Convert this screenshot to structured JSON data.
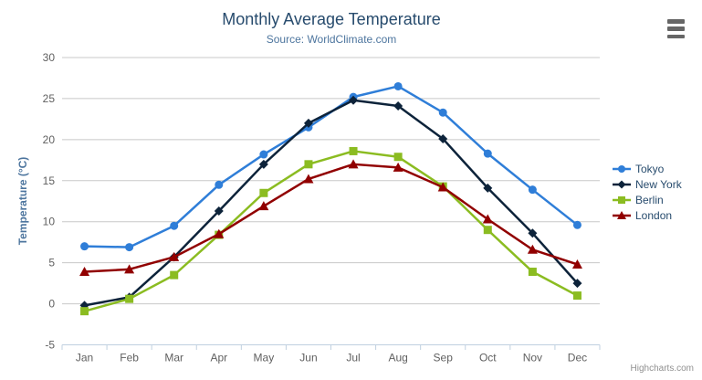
{
  "credit": {
    "label": "Highcharts.com"
  },
  "palette": {
    "title_color": "#274b6d",
    "subtitle_color": "#4d759e",
    "axis_title_color": "#4d759e",
    "axis_label_color": "#606060",
    "legend_text_color": "#274b6d",
    "grid_color": "#c8c8c8",
    "axis_line_color": "#c0d0e0",
    "menu_icon_color": "#666666",
    "credit_color": "#909090"
  },
  "chart_data": {
    "type": "line",
    "title": "Monthly Average Temperature",
    "subtitle": "Source: WorldClimate.com",
    "xlabel": "",
    "ylabel": "Temperature (°C)",
    "categories": [
      "Jan",
      "Feb",
      "Mar",
      "Apr",
      "May",
      "Jun",
      "Jul",
      "Aug",
      "Sep",
      "Oct",
      "Nov",
      "Dec"
    ],
    "ylim": [
      -5,
      30
    ],
    "ytick_step": 5,
    "grid": true,
    "legend_position": "right",
    "series": [
      {
        "name": "Tokyo",
        "color": "#2f7ed8",
        "marker": "circle",
        "values": [
          7.0,
          6.9,
          9.5,
          14.5,
          18.2,
          21.5,
          25.2,
          26.5,
          23.3,
          18.3,
          13.9,
          9.6
        ]
      },
      {
        "name": "New York",
        "color": "#0d233a",
        "marker": "diamond",
        "values": [
          -0.2,
          0.8,
          5.7,
          11.3,
          17.0,
          22.0,
          24.8,
          24.1,
          20.1,
          14.1,
          8.6,
          2.5
        ]
      },
      {
        "name": "Berlin",
        "color": "#8bbc21",
        "marker": "square",
        "values": [
          -0.9,
          0.6,
          3.5,
          8.4,
          13.5,
          17.0,
          18.6,
          17.9,
          14.3,
          9.0,
          3.9,
          1.0
        ]
      },
      {
        "name": "London",
        "color": "#910000",
        "marker": "triangle",
        "values": [
          3.9,
          4.2,
          5.7,
          8.5,
          11.9,
          15.2,
          17.0,
          16.6,
          14.2,
          10.3,
          6.6,
          4.8
        ]
      }
    ]
  }
}
